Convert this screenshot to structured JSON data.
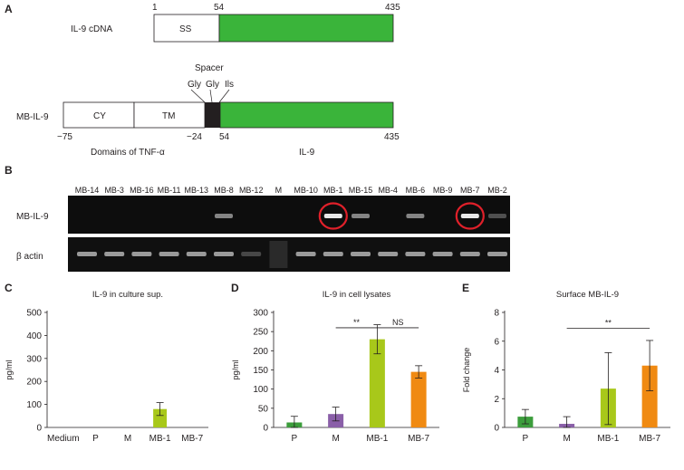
{
  "panel_a": {
    "letter": "A",
    "cdna": {
      "label": "IL-9 cDNA",
      "pos_start": "1",
      "pos_mid": "54",
      "pos_end": "435",
      "ss_label": "SS"
    },
    "mb": {
      "label": "MB-IL-9",
      "spacer_label": "Spacer",
      "spacer_aa": [
        "Gly",
        "Gly",
        "Ils"
      ],
      "cy_label": "CY",
      "tm_label": "TM",
      "pos_minus75": "−75",
      "pos_minus24": "−24",
      "pos_54": "54",
      "pos_435": "435",
      "domains_label": "Domains of TNF-α",
      "il9_label": "IL-9"
    },
    "colors": {
      "il9": "#3ab43a",
      "spacer": "#231f20"
    }
  },
  "panel_b": {
    "letter": "B",
    "lanes": [
      "MB-14",
      "MB-3",
      "MB-16",
      "MB-11",
      "MB-13",
      "MB-8",
      "MB-12",
      "M",
      "MB-10",
      "MB-1",
      "MB-15",
      "MB-4",
      "MB-6",
      "MB-9",
      "MB-7",
      "MB-2"
    ],
    "row1_label": "MB-IL-9",
    "row2_label": "β actin",
    "highlight_color": "#e0202a"
  },
  "chart_data": [
    {
      "panel": "C",
      "type": "bar",
      "title": "IL-9 in culture sup.",
      "ylabel": "pg/ml",
      "categories": [
        "Medium",
        "P",
        "M",
        "MB-1",
        "MB-7"
      ],
      "values": [
        0,
        0,
        0,
        80,
        0
      ],
      "errors": [
        0,
        0,
        0,
        28,
        0
      ],
      "colors": [
        "#7fc241",
        "#7fc241",
        "#7fc241",
        "#a8c81a",
        "#7fc241"
      ],
      "ylim": [
        0,
        500
      ],
      "yticks": [
        0,
        100,
        200,
        300,
        400,
        500
      ],
      "significance": []
    },
    {
      "panel": "D",
      "type": "bar",
      "title": "IL-9 in cell lysates",
      "ylabel": "pg/ml",
      "categories": [
        "P",
        "M",
        "MB-1",
        "MB-7"
      ],
      "values": [
        13,
        35,
        230,
        145
      ],
      "errors": [
        16,
        18,
        38,
        16
      ],
      "colors": [
        "#3c9d3c",
        "#8a5fa8",
        "#a8c81a",
        "#f08a12"
      ],
      "ylim": [
        0,
        300
      ],
      "yticks": [
        0,
        50,
        100,
        150,
        200,
        250,
        300
      ],
      "significance": [
        {
          "from": 1,
          "to": 2,
          "label": "**",
          "y": 260
        },
        {
          "from": 2,
          "to": 3,
          "label": "NS",
          "y": 260
        }
      ]
    },
    {
      "panel": "E",
      "type": "bar",
      "title": "Surface MB-IL-9",
      "ylabel": "Fold change",
      "categories": [
        "P",
        "M",
        "MB-1",
        "MB-7"
      ],
      "values": [
        0.75,
        0.25,
        2.7,
        4.3
      ],
      "errors": [
        0.5,
        0.5,
        2.5,
        1.75
      ],
      "colors": [
        "#3c9d3c",
        "#8a5fa8",
        "#a8c81a",
        "#f08a12"
      ],
      "ylim": [
        0,
        8
      ],
      "yticks": [
        0,
        2,
        4,
        6,
        8
      ],
      "significance": [
        {
          "from": 1,
          "to": 3,
          "label": "**",
          "y": 6.9
        }
      ]
    }
  ]
}
